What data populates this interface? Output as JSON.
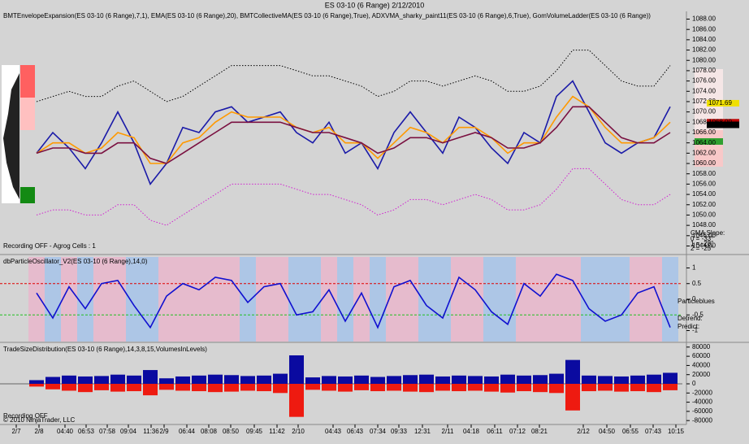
{
  "window_title": "ES 03-10 (6 Range)  2/12/2010",
  "chart_data": [
    {
      "type": "line",
      "title": "BMTEnvelopeExpansion(ES 03-10 (6 Range),7,1),  EMA(ES 03-10 (6 Range),20),  BMTCollectiveMA(ES 03-10 (6 Range),True),  ADXVMA_sharky_paint11(ES 03-10 (6 Range),6,True),  GomVolumeLadder(ES 03-10 (6 Range))",
      "annotations": [
        "Recording OFF - Agrog Cells : 1",
        "CMA Slope:",
        "0 = -33°",
        "1 = -28°",
        "2 = -25°"
      ],
      "xlim": [
        -2.25,
        39.75
      ],
      "x": [
        0,
        1,
        2,
        3,
        4,
        5,
        6,
        7,
        8,
        9,
        10,
        11,
        12,
        13,
        14,
        15,
        16,
        17,
        18,
        19,
        20,
        21,
        22,
        23,
        24,
        25,
        26,
        27,
        28,
        29,
        30,
        31,
        32,
        33,
        34,
        35,
        36,
        37,
        38,
        39
      ],
      "ylim": [
        1042.5,
        1089.5
      ],
      "yticks": [
        {
          "value": 1044,
          "label": "1044.00"
        },
        {
          "value": 1046,
          "label": "1046.00"
        },
        {
          "value": 1048,
          "label": "1048.00"
        },
        {
          "value": 1050,
          "label": "1050.00"
        },
        {
          "value": 1052,
          "label": "1052.00"
        },
        {
          "value": 1054,
          "label": "1054.00"
        },
        {
          "value": 1056,
          "label": "1056.00"
        },
        {
          "value": 1058,
          "label": "1058.00"
        },
        {
          "value": 1060,
          "label": "1060.00"
        },
        {
          "value": 1062,
          "label": "1062.00"
        },
        {
          "value": 1064,
          "label": "1064.00"
        },
        {
          "value": 1066,
          "label": "1066.00"
        },
        {
          "value": 1068,
          "label": "1068.00"
        },
        {
          "value": 1070,
          "label": "1070.00"
        },
        {
          "value": 1072,
          "label": "1072.00"
        },
        {
          "value": 1074,
          "label": "1074.00"
        },
        {
          "value": 1076,
          "label": "1076.00"
        },
        {
          "value": 1078,
          "label": "1078.00"
        },
        {
          "value": 1080,
          "label": "1080.00"
        },
        {
          "value": 1082,
          "label": "1082.00"
        },
        {
          "value": 1084,
          "label": "1084.00"
        },
        {
          "value": 1086,
          "label": "1086.00"
        },
        {
          "value": 1088,
          "label": "1088.00"
        }
      ],
      "price_labels": [
        {
          "value": 1071.69,
          "label": "1071.69"
        },
        {
          "value": 1068,
          "label": "1068.00"
        },
        {
          "value": 1067.5,
          "label": "1067.50"
        }
      ],
      "series": [
        {
          "color": "#000000",
          "style": "dotted",
          "values": [
            1072,
            1073,
            1074,
            1073,
            1073,
            1075,
            1076,
            1074,
            1072,
            1073,
            1075,
            1077,
            1079,
            1079,
            1079,
            1079,
            1078,
            1077,
            1077,
            1076,
            1075,
            1073,
            1074,
            1076,
            1076,
            1075,
            1076,
            1077,
            1076,
            1074,
            1074,
            1075,
            1078,
            1082,
            1082,
            1079,
            1076,
            1075,
            1075,
            1079
          ]
        },
        {
          "color": "#d020d0",
          "style": "dotted",
          "values": [
            1050,
            1051,
            1051,
            1050,
            1050,
            1052,
            1052,
            1049,
            1048,
            1050,
            1052,
            1054,
            1056,
            1056,
            1056,
            1056,
            1055,
            1054,
            1054,
            1053,
            1052,
            1050,
            1051,
            1053,
            1053,
            1052,
            1053,
            1054,
            1053,
            1051,
            1051,
            1052,
            1055,
            1059,
            1059,
            1056,
            1053,
            1052,
            1052,
            1054
          ]
        },
        {
          "color": "#1a1aa8",
          "style": "solid",
          "values": [
            1062,
            1066,
            1063,
            1059,
            1064,
            1070,
            1064,
            1056,
            1060,
            1067,
            1066,
            1070,
            1071,
            1068,
            1069,
            1070,
            1066,
            1064,
            1068,
            1062,
            1064,
            1059,
            1066,
            1070,
            1066,
            1062,
            1069,
            1067,
            1063,
            1060,
            1066,
            1064,
            1073,
            1076,
            1070,
            1064,
            1062,
            1064,
            1065,
            1071
          ]
        },
        {
          "color": "#ff9900",
          "style": "solid",
          "values": [
            1062,
            1064,
            1064,
            1062,
            1063,
            1066,
            1065,
            1060,
            1060,
            1064,
            1065,
            1068,
            1070,
            1069,
            1069,
            1069,
            1067,
            1066,
            1067,
            1064,
            1064,
            1061,
            1064,
            1067,
            1066,
            1064,
            1067,
            1067,
            1065,
            1062,
            1064,
            1064,
            1069,
            1073,
            1071,
            1067,
            1064,
            1064,
            1065,
            1068
          ]
        },
        {
          "color": "#7a1040",
          "style": "solid",
          "values": [
            1062,
            1063,
            1063,
            1062,
            1062,
            1064,
            1064,
            1061,
            1060,
            1062,
            1064,
            1066,
            1068,
            1068,
            1068,
            1068,
            1067,
            1066,
            1066,
            1065,
            1064,
            1062,
            1063,
            1065,
            1065,
            1064,
            1065,
            1066,
            1065,
            1063,
            1063,
            1064,
            1067,
            1071,
            1071,
            1068,
            1065,
            1064,
            1064,
            1066
          ]
        }
      ]
    },
    {
      "type": "line",
      "title": "dbParticleOscillator_V2(ES 03-10 (6 Range),14,0)",
      "annotations": [
        "Particleblues",
        "Detrend:",
        "Predict:"
      ],
      "xlim": [
        -2.25,
        39.75
      ],
      "x": [
        0,
        1,
        2,
        3,
        4,
        5,
        6,
        7,
        8,
        9,
        10,
        11,
        12,
        13,
        14,
        15,
        16,
        17,
        18,
        19,
        20,
        21,
        22,
        23,
        24,
        25,
        26,
        27,
        28,
        29,
        30,
        31,
        32,
        33,
        34,
        35,
        36,
        37,
        38,
        39
      ],
      "ylim": [
        -1.35,
        1.35
      ],
      "yticks": [
        1,
        0.5,
        0,
        -0.5,
        -1
      ],
      "levels": [
        0.5,
        -0.5
      ],
      "series": [
        {
          "color": "#1010d0",
          "style": "solid",
          "values": [
            0.2,
            -0.6,
            0.4,
            -0.3,
            0.5,
            0.6,
            -0.2,
            -0.9,
            0.1,
            0.5,
            0.3,
            0.7,
            0.6,
            -0.1,
            0.4,
            0.5,
            -0.5,
            -0.4,
            0.3,
            -0.7,
            0.2,
            -0.9,
            0.4,
            0.6,
            -0.2,
            -0.6,
            0.7,
            0.3,
            -0.4,
            -0.8,
            0.5,
            0.1,
            0.8,
            0.6,
            -0.3,
            -0.7,
            -0.5,
            0.2,
            0.4,
            -0.9
          ]
        }
      ]
    },
    {
      "type": "bar",
      "title": "TradeSizeDistribution(ES 03-10 (6 Range),14,3,8,15,VolumesInLevels)",
      "annotations": [
        "Recording OFF",
        "© 2010 NinjaTrader, LLC"
      ],
      "xlim": [
        -2.25,
        39.75
      ],
      "x": [
        0,
        1,
        2,
        3,
        4,
        5,
        6,
        7,
        8,
        9,
        10,
        11,
        12,
        13,
        14,
        15,
        16,
        17,
        18,
        19,
        20,
        21,
        22,
        23,
        24,
        25,
        26,
        27,
        28,
        29,
        30,
        31,
        32,
        33,
        34,
        35,
        36,
        37,
        38,
        39
      ],
      "ylim": [
        -85000,
        85000
      ],
      "yticks": [
        80000,
        60000,
        40000,
        20000,
        0,
        -20000,
        -40000,
        -60000,
        -80000
      ],
      "xticks": [
        {
          "value": -1.25,
          "label": "2/7"
        },
        {
          "value": 0.15,
          "label": "2/8"
        },
        {
          "value": 1.75,
          "label": "04:40"
        },
        {
          "value": 3.05,
          "label": "06:53"
        },
        {
          "value": 4.35,
          "label": "07:58"
        },
        {
          "value": 5.65,
          "label": "09:04"
        },
        {
          "value": 7.05,
          "label": "11:36"
        },
        {
          "value": 7.85,
          "label": "2/9"
        },
        {
          "value": 9.25,
          "label": "06:44"
        },
        {
          "value": 10.6,
          "label": "08:08"
        },
        {
          "value": 11.95,
          "label": "08:50"
        },
        {
          "value": 13.4,
          "label": "09:45"
        },
        {
          "value": 14.8,
          "label": "11:42"
        },
        {
          "value": 16.1,
          "label": "2/10"
        },
        {
          "value": 18.25,
          "label": "04:43"
        },
        {
          "value": 19.6,
          "label": "06:43"
        },
        {
          "value": 21,
          "label": "07:34"
        },
        {
          "value": 22.3,
          "label": "09:33"
        },
        {
          "value": 23.75,
          "label": "12:31"
        },
        {
          "value": 25.3,
          "label": "2/11"
        },
        {
          "value": 26.75,
          "label": "04:18"
        },
        {
          "value": 28.2,
          "label": "06:11"
        },
        {
          "value": 29.6,
          "label": "07:12"
        },
        {
          "value": 30.95,
          "label": "08:21"
        },
        {
          "value": 33.65,
          "label": "2/12"
        },
        {
          "value": 35.1,
          "label": "04:50"
        },
        {
          "value": 36.55,
          "label": "06:55"
        },
        {
          "value": 37.95,
          "label": "07:43"
        },
        {
          "value": 39.35,
          "label": "10:15"
        }
      ],
      "series": [
        {
          "color": "#0a0aa0",
          "values": [
            8000,
            15000,
            18000,
            16000,
            17000,
            20000,
            18000,
            30000,
            12000,
            16000,
            18000,
            20000,
            19000,
            17000,
            18000,
            22000,
            62000,
            14000,
            17000,
            16000,
            18000,
            15000,
            17000,
            19000,
            20000,
            16000,
            18000,
            17000,
            16000,
            20000,
            18000,
            19000,
            22000,
            52000,
            18000,
            17000,
            16000,
            18000,
            20000,
            24000
          ]
        },
        {
          "color": "#ee1a10",
          "values": [
            -6000,
            -12000,
            -15000,
            -18000,
            -14000,
            -17000,
            -16000,
            -25000,
            -13000,
            -15000,
            -16000,
            -18000,
            -17000,
            -15000,
            -16000,
            -20000,
            -72000,
            -13000,
            -15000,
            -17000,
            -14000,
            -16000,
            -15000,
            -17000,
            -18000,
            -15000,
            -16000,
            -15000,
            -17000,
            -19000,
            -16000,
            -18000,
            -20000,
            -58000,
            -16000,
            -15000,
            -17000,
            -16000,
            -18000,
            -14000
          ]
        }
      ]
    }
  ]
}
